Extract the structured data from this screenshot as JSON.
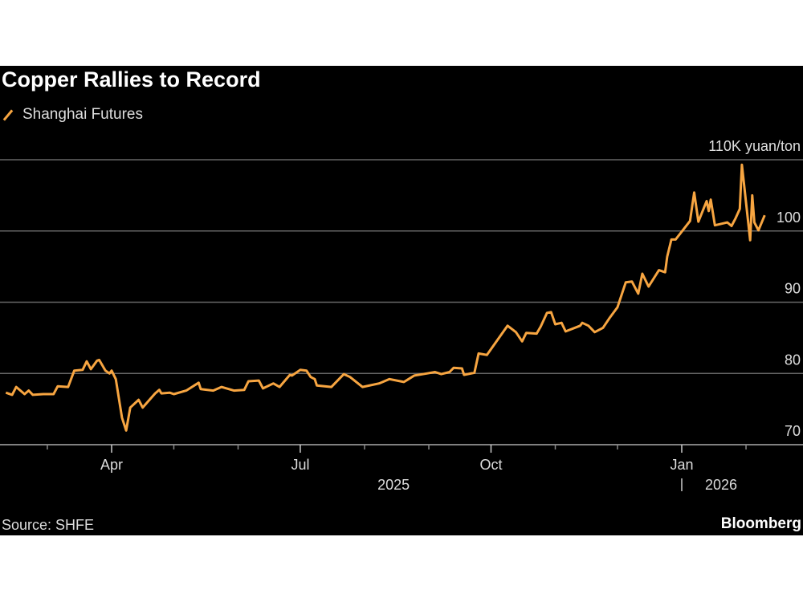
{
  "title": "Copper Rallies to Record",
  "legend": {
    "label": "Shanghai Futures"
  },
  "source": "Source: SHFE",
  "brand": "Bloomberg",
  "colors": {
    "series": "#f7a541",
    "background": "#000000",
    "grid": "#666666"
  },
  "chart_data": {
    "type": "line",
    "title": "Copper Rallies to Record",
    "unit_label": "110K yuan/ton",
    "series": [
      {
        "name": "Shanghai Futures",
        "unit": "thousand yuan/ton"
      }
    ],
    "y_ticks": [
      {
        "value": 110,
        "label": "110K yuan/ton"
      },
      {
        "value": 100,
        "label": "100"
      },
      {
        "value": 90,
        "label": "90"
      },
      {
        "value": 80,
        "label": "80"
      },
      {
        "value": 70,
        "label": "70"
      }
    ],
    "ylim": [
      70,
      110
    ],
    "xlim": [
      "2025-02-08",
      "2026-02-12"
    ],
    "x_ticks": [
      {
        "date": "2025-04-01",
        "label": "Apr"
      },
      {
        "date": "2025-07-01",
        "label": "Jul"
      },
      {
        "date": "2025-10-01",
        "label": "Oct"
      },
      {
        "date": "2026-01-01",
        "label": "Jan"
      }
    ],
    "minor_ticks": [
      "2025-03-01",
      "2025-05-01",
      "2025-06-01",
      "2025-08-01",
      "2025-09-01",
      "2025-11-01",
      "2025-12-01",
      "2026-02-01"
    ],
    "year_labels": [
      {
        "date": "2025-08-15",
        "label": "2025"
      },
      {
        "date": "2026-01-20",
        "label": "2026"
      }
    ],
    "grid": true,
    "legend_position": "top-left",
    "points": [
      [
        "2025-02-09",
        77.3
      ],
      [
        "2025-02-12",
        77.0
      ],
      [
        "2025-02-14",
        78.1
      ],
      [
        "2025-02-18",
        77.1
      ],
      [
        "2025-02-20",
        77.6
      ],
      [
        "2025-02-22",
        77.0
      ],
      [
        "2025-02-27",
        77.1
      ],
      [
        "2025-03-04",
        77.1
      ],
      [
        "2025-03-06",
        78.2
      ],
      [
        "2025-03-11",
        78.1
      ],
      [
        "2025-03-14",
        80.4
      ],
      [
        "2025-03-18",
        80.5
      ],
      [
        "2025-03-20",
        81.7
      ],
      [
        "2025-03-22",
        80.6
      ],
      [
        "2025-03-25",
        81.8
      ],
      [
        "2025-03-26",
        81.9
      ],
      [
        "2025-03-29",
        80.4
      ],
      [
        "2025-03-31",
        80.0
      ],
      [
        "2025-04-01",
        80.4
      ],
      [
        "2025-04-03",
        79.2
      ],
      [
        "2025-04-06",
        73.8
      ],
      [
        "2025-04-08",
        72.0
      ],
      [
        "2025-04-10",
        75.2
      ],
      [
        "2025-04-14",
        76.3
      ],
      [
        "2025-04-16",
        75.2
      ],
      [
        "2025-04-22",
        77.2
      ],
      [
        "2025-04-24",
        77.7
      ],
      [
        "2025-04-25",
        77.2
      ],
      [
        "2025-04-29",
        77.3
      ],
      [
        "2025-05-01",
        77.1
      ],
      [
        "2025-05-07",
        77.6
      ],
      [
        "2025-05-13",
        78.7
      ],
      [
        "2025-05-14",
        77.8
      ],
      [
        "2025-05-20",
        77.6
      ],
      [
        "2025-05-24",
        78.1
      ],
      [
        "2025-05-30",
        77.6
      ],
      [
        "2025-06-04",
        77.7
      ],
      [
        "2025-06-06",
        78.9
      ],
      [
        "2025-06-11",
        79.0
      ],
      [
        "2025-06-13",
        77.9
      ],
      [
        "2025-06-18",
        78.6
      ],
      [
        "2025-06-21",
        78.1
      ],
      [
        "2025-06-26",
        79.8
      ],
      [
        "2025-06-27",
        79.7
      ],
      [
        "2025-07-01",
        80.5
      ],
      [
        "2025-07-04",
        80.4
      ],
      [
        "2025-07-06",
        79.5
      ],
      [
        "2025-07-08",
        79.2
      ],
      [
        "2025-07-09",
        78.3
      ],
      [
        "2025-07-16",
        78.1
      ],
      [
        "2025-07-22",
        79.9
      ],
      [
        "2025-07-25",
        79.5
      ],
      [
        "2025-07-31",
        78.1
      ],
      [
        "2025-08-08",
        78.6
      ],
      [
        "2025-08-13",
        79.2
      ],
      [
        "2025-08-20",
        78.8
      ],
      [
        "2025-08-25",
        79.7
      ],
      [
        "2025-08-31",
        80.0
      ],
      [
        "2025-09-04",
        80.2
      ],
      [
        "2025-09-07",
        79.9
      ],
      [
        "2025-09-11",
        80.2
      ],
      [
        "2025-09-13",
        80.8
      ],
      [
        "2025-09-17",
        80.7
      ],
      [
        "2025-09-18",
        79.8
      ],
      [
        "2025-09-23",
        80.1
      ],
      [
        "2025-09-25",
        82.8
      ],
      [
        "2025-09-29",
        82.6
      ],
      [
        "2025-10-09",
        86.7
      ],
      [
        "2025-10-13",
        85.8
      ],
      [
        "2025-10-16",
        84.5
      ],
      [
        "2025-10-18",
        85.7
      ],
      [
        "2025-10-23",
        85.6
      ],
      [
        "2025-10-25",
        86.6
      ],
      [
        "2025-10-28",
        88.5
      ],
      [
        "2025-10-30",
        88.6
      ],
      [
        "2025-11-01",
        86.9
      ],
      [
        "2025-11-04",
        87.1
      ],
      [
        "2025-11-06",
        85.9
      ],
      [
        "2025-11-13",
        86.7
      ],
      [
        "2025-11-14",
        87.1
      ],
      [
        "2025-11-17",
        86.7
      ],
      [
        "2025-11-20",
        85.8
      ],
      [
        "2025-11-24",
        86.4
      ],
      [
        "2025-11-27",
        87.7
      ],
      [
        "2025-12-01",
        89.3
      ],
      [
        "2025-12-05",
        92.8
      ],
      [
        "2025-12-08",
        92.9
      ],
      [
        "2025-12-11",
        91.2
      ],
      [
        "2025-12-13",
        94.0
      ],
      [
        "2025-12-16",
        92.2
      ],
      [
        "2025-12-21",
        94.5
      ],
      [
        "2025-12-24",
        94.2
      ],
      [
        "2025-12-25",
        96.4
      ],
      [
        "2025-12-27",
        98.8
      ],
      [
        "2025-12-29",
        98.8
      ],
      [
        "2026-01-05",
        101.4
      ],
      [
        "2026-01-07",
        105.4
      ],
      [
        "2026-01-09",
        101.3
      ],
      [
        "2026-01-13",
        104.2
      ],
      [
        "2026-01-14",
        102.8
      ],
      [
        "2026-01-15",
        104.4
      ],
      [
        "2026-01-17",
        100.8
      ],
      [
        "2026-01-23",
        101.2
      ],
      [
        "2026-01-25",
        100.7
      ],
      [
        "2026-01-27",
        101.8
      ],
      [
        "2026-01-29",
        103.1
      ],
      [
        "2026-01-30",
        109.3
      ],
      [
        "2026-02-03",
        98.7
      ],
      [
        "2026-02-04",
        105.0
      ],
      [
        "2026-02-05",
        101.2
      ],
      [
        "2026-02-07",
        100.1
      ],
      [
        "2026-02-10",
        102.2
      ]
    ]
  }
}
